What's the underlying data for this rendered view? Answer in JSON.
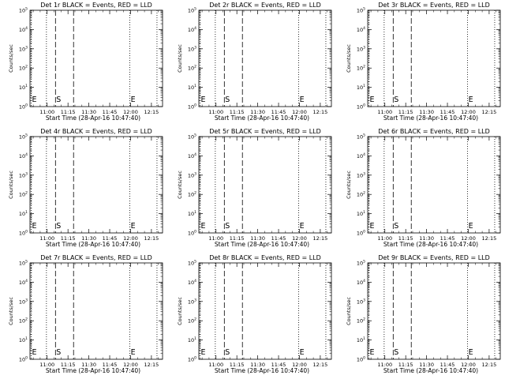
{
  "chart_data": [
    {
      "type": "line",
      "title": "Det 1r BLACK = Events, RED = LLD",
      "xlabel": "Start Time (28-Apr-16 10:47:40)",
      "ylabel": "Counts/sec",
      "xticks": [
        "11:00",
        "11:15",
        "11:30",
        "11:45",
        "12:00",
        "12:15"
      ],
      "yticks": [
        "10^0",
        "10^1",
        "10^2",
        "10^3",
        "10^4",
        "10^5"
      ],
      "ylim": [
        1,
        100000
      ],
      "log_y": true,
      "xlim": [
        "10:47:40",
        "12:23:00"
      ],
      "series": [],
      "markers": [
        {
          "label": "E",
          "time": "10:48:30",
          "style": "dotted"
        },
        {
          "label": "",
          "time": "10:59:30",
          "style": "dotted"
        },
        {
          "label": "S",
          "time": "11:06:00",
          "style": "dashed"
        },
        {
          "label": "",
          "time": "11:19:00",
          "style": "dashed"
        },
        {
          "label": "E",
          "time": "11:59:30",
          "style": "dotted"
        },
        {
          "label": "",
          "time": "12:19:00",
          "style": "dotted"
        }
      ]
    },
    {
      "type": "line",
      "title": "Det 2r BLACK = Events, RED = LLD",
      "xlabel": "Start Time (28-Apr-16 10:47:40)",
      "ylabel": "Counts/sec",
      "xticks": [
        "11:00",
        "11:15",
        "11:30",
        "11:45",
        "12:00",
        "12:15"
      ],
      "yticks": [
        "10^0",
        "10^1",
        "10^2",
        "10^3",
        "10^4",
        "10^5"
      ],
      "ylim": [
        1,
        100000
      ],
      "log_y": true,
      "xlim": [
        "10:47:40",
        "12:23:00"
      ],
      "series": [],
      "markers": [
        {
          "label": "E",
          "time": "10:48:30",
          "style": "dotted"
        },
        {
          "label": "",
          "time": "10:59:30",
          "style": "dotted"
        },
        {
          "label": "S",
          "time": "11:06:00",
          "style": "dashed"
        },
        {
          "label": "",
          "time": "11:19:00",
          "style": "dashed"
        },
        {
          "label": "E",
          "time": "11:59:30",
          "style": "dotted"
        },
        {
          "label": "",
          "time": "12:19:00",
          "style": "dotted"
        }
      ]
    },
    {
      "type": "line",
      "title": "Det 3r BLACK = Events, RED = LLD",
      "xlabel": "Start Time (28-Apr-16 10:47:40)",
      "ylabel": "Counts/sec",
      "xticks": [
        "11:00",
        "11:15",
        "11:30",
        "11:45",
        "12:00",
        "12:15"
      ],
      "yticks": [
        "10^0",
        "10^1",
        "10^2",
        "10^3",
        "10^4",
        "10^5"
      ],
      "ylim": [
        1,
        100000
      ],
      "log_y": true,
      "xlim": [
        "10:47:40",
        "12:23:00"
      ],
      "series": [],
      "markers": [
        {
          "label": "E",
          "time": "10:48:30",
          "style": "dotted"
        },
        {
          "label": "",
          "time": "10:59:30",
          "style": "dotted"
        },
        {
          "label": "S",
          "time": "11:06:00",
          "style": "dashed"
        },
        {
          "label": "",
          "time": "11:19:00",
          "style": "dashed"
        },
        {
          "label": "E",
          "time": "11:59:30",
          "style": "dotted"
        },
        {
          "label": "",
          "time": "12:19:00",
          "style": "dotted"
        }
      ]
    },
    {
      "type": "line",
      "title": "Det 4r BLACK = Events, RED = LLD",
      "xlabel": "Start Time (28-Apr-16 10:47:40)",
      "ylabel": "Counts/sec",
      "xticks": [
        "11:00",
        "11:15",
        "11:30",
        "11:45",
        "12:00",
        "12:15"
      ],
      "yticks": [
        "10^0",
        "10^1",
        "10^2",
        "10^3",
        "10^4",
        "10^5"
      ],
      "ylim": [
        1,
        100000
      ],
      "log_y": true,
      "xlim": [
        "10:47:40",
        "12:23:00"
      ],
      "series": [],
      "markers": [
        {
          "label": "E",
          "time": "10:48:30",
          "style": "dotted"
        },
        {
          "label": "",
          "time": "10:59:30",
          "style": "dotted"
        },
        {
          "label": "S",
          "time": "11:06:00",
          "style": "dashed"
        },
        {
          "label": "",
          "time": "11:19:00",
          "style": "dashed"
        },
        {
          "label": "E",
          "time": "11:59:30",
          "style": "dotted"
        },
        {
          "label": "",
          "time": "12:19:00",
          "style": "dotted"
        }
      ]
    },
    {
      "type": "line",
      "title": "Det 5r BLACK = Events, RED = LLD",
      "xlabel": "Start Time (28-Apr-16 10:47:40)",
      "ylabel": "Counts/sec",
      "xticks": [
        "11:00",
        "11:15",
        "11:30",
        "11:45",
        "12:00",
        "12:15"
      ],
      "yticks": [
        "10^0",
        "10^1",
        "10^2",
        "10^3",
        "10^4",
        "10^5"
      ],
      "ylim": [
        1,
        100000
      ],
      "log_y": true,
      "xlim": [
        "10:47:40",
        "12:23:00"
      ],
      "series": [],
      "markers": [
        {
          "label": "E",
          "time": "10:48:30",
          "style": "dotted"
        },
        {
          "label": "",
          "time": "10:59:30",
          "style": "dotted"
        },
        {
          "label": "S",
          "time": "11:06:00",
          "style": "dashed"
        },
        {
          "label": "",
          "time": "11:19:00",
          "style": "dashed"
        },
        {
          "label": "E",
          "time": "11:59:30",
          "style": "dotted"
        },
        {
          "label": "",
          "time": "12:19:00",
          "style": "dotted"
        }
      ]
    },
    {
      "type": "line",
      "title": "Det 6r BLACK = Events, RED = LLD",
      "xlabel": "Start Time (28-Apr-16 10:47:40)",
      "ylabel": "Counts/sec",
      "xticks": [
        "11:00",
        "11:15",
        "11:30",
        "11:45",
        "12:00",
        "12:15"
      ],
      "yticks": [
        "10^0",
        "10^1",
        "10^2",
        "10^3",
        "10^4",
        "10^5"
      ],
      "ylim": [
        1,
        100000
      ],
      "log_y": true,
      "xlim": [
        "10:47:40",
        "12:23:00"
      ],
      "series": [],
      "markers": [
        {
          "label": "E",
          "time": "10:48:30",
          "style": "dotted"
        },
        {
          "label": "",
          "time": "10:59:30",
          "style": "dotted"
        },
        {
          "label": "S",
          "time": "11:06:00",
          "style": "dashed"
        },
        {
          "label": "",
          "time": "11:19:00",
          "style": "dashed"
        },
        {
          "label": "E",
          "time": "11:59:30",
          "style": "dotted"
        },
        {
          "label": "",
          "time": "12:19:00",
          "style": "dotted"
        }
      ]
    },
    {
      "type": "line",
      "title": "Det 7r BLACK = Events, RED = LLD",
      "xlabel": "Start Time (28-Apr-16 10:47:40)",
      "ylabel": "Counts/sec",
      "xticks": [
        "11:00",
        "11:15",
        "11:30",
        "11:45",
        "12:00",
        "12:15"
      ],
      "yticks": [
        "10^0",
        "10^1",
        "10^2",
        "10^3",
        "10^4",
        "10^5"
      ],
      "ylim": [
        1,
        100000
      ],
      "log_y": true,
      "xlim": [
        "10:47:40",
        "12:23:00"
      ],
      "series": [],
      "markers": [
        {
          "label": "E",
          "time": "10:48:30",
          "style": "dotted"
        },
        {
          "label": "",
          "time": "10:59:30",
          "style": "dotted"
        },
        {
          "label": "S",
          "time": "11:06:00",
          "style": "dashed"
        },
        {
          "label": "",
          "time": "11:19:00",
          "style": "dashed"
        },
        {
          "label": "E",
          "time": "11:59:30",
          "style": "dotted"
        },
        {
          "label": "",
          "time": "12:19:00",
          "style": "dotted"
        }
      ]
    },
    {
      "type": "line",
      "title": "Det 8r BLACK = Events, RED = LLD",
      "xlabel": "Start Time (28-Apr-16 10:47:40)",
      "ylabel": "Counts/sec",
      "xticks": [
        "11:00",
        "11:15",
        "11:30",
        "11:45",
        "12:00",
        "12:15"
      ],
      "yticks": [
        "10^0",
        "10^1",
        "10^2",
        "10^3",
        "10^4",
        "10^5"
      ],
      "ylim": [
        1,
        100000
      ],
      "log_y": true,
      "xlim": [
        "10:47:40",
        "12:23:00"
      ],
      "series": [],
      "markers": [
        {
          "label": "E",
          "time": "10:48:30",
          "style": "dotted"
        },
        {
          "label": "",
          "time": "10:59:30",
          "style": "dotted"
        },
        {
          "label": "S",
          "time": "11:06:00",
          "style": "dashed"
        },
        {
          "label": "",
          "time": "11:19:00",
          "style": "dashed"
        },
        {
          "label": "E",
          "time": "11:59:30",
          "style": "dotted"
        },
        {
          "label": "",
          "time": "12:19:00",
          "style": "dotted"
        }
      ]
    },
    {
      "type": "line",
      "title": "Det 9r BLACK = Events, RED = LLD",
      "xlabel": "Start Time (28-Apr-16 10:47:40)",
      "ylabel": "Counts/sec",
      "xticks": [
        "11:00",
        "11:15",
        "11:30",
        "11:45",
        "12:00",
        "12:15"
      ],
      "yticks": [
        "10^0",
        "10^1",
        "10^2",
        "10^3",
        "10^4",
        "10^5"
      ],
      "ylim": [
        1,
        100000
      ],
      "log_y": true,
      "xlim": [
        "10:47:40",
        "12:23:00"
      ],
      "series": [],
      "markers": [
        {
          "label": "E",
          "time": "10:48:30",
          "style": "dotted"
        },
        {
          "label": "",
          "time": "10:59:30",
          "style": "dotted"
        },
        {
          "label": "S",
          "time": "11:06:00",
          "style": "dashed"
        },
        {
          "label": "",
          "time": "11:19:00",
          "style": "dashed"
        },
        {
          "label": "E",
          "time": "11:59:30",
          "style": "dotted"
        },
        {
          "label": "",
          "time": "12:19:00",
          "style": "dotted"
        }
      ]
    }
  ]
}
